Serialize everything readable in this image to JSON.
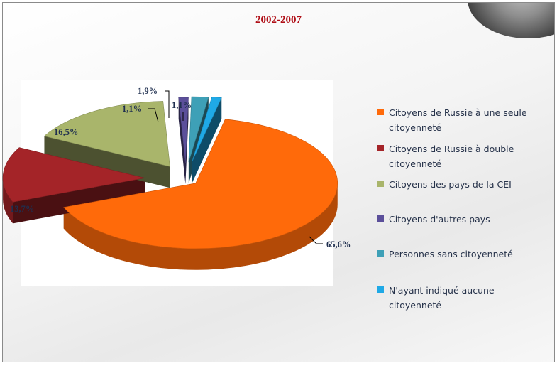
{
  "chart_data": {
    "type": "pie",
    "title": "2002-2007",
    "slices": [
      {
        "label": "Citoyens de Russie à une seule citoyenneté",
        "value": 65.6,
        "value_label": "65,6%",
        "color": "#ff6a0a"
      },
      {
        "label": "Citoyens de Russie à double citoyenneté",
        "value": 13.7,
        "value_label": "13,7%",
        "color": "#a42428"
      },
      {
        "label": "Citoyens des pays de la CEI",
        "value": 16.5,
        "value_label": "16,5%",
        "color": "#a9b56b"
      },
      {
        "label": "Citoyens d'autres pays",
        "value": 1.1,
        "value_label": "1,1%",
        "color": "#5b4f9a"
      },
      {
        "label": "Personnes sans citoyenneté",
        "value": 1.9,
        "value_label": "1,9%",
        "color": "#3ea0b7"
      },
      {
        "label": "N'ayant indiqué aucune citoyenneté",
        "value": 1.1,
        "value_label": "1,1%",
        "color": "#1fa9e6"
      }
    ],
    "style": "3d-exploded",
    "legend_position": "right"
  }
}
